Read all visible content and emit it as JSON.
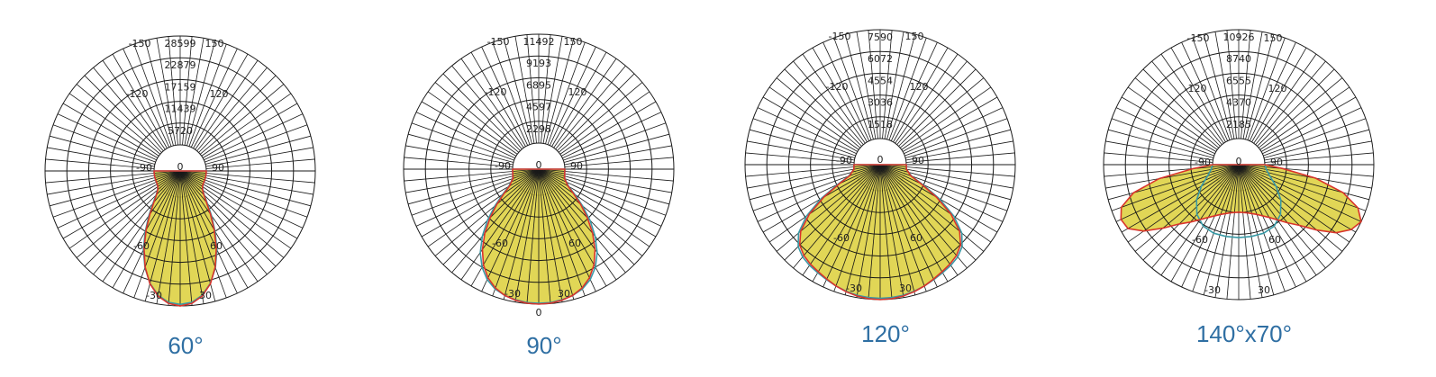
{
  "chart_data": [
    {
      "type": "polar",
      "title": "60°",
      "ring_labels": [
        "5720",
        "11439",
        "17159",
        "22879",
        "28599"
      ],
      "r_max": 28599,
      "angle_tick_labels": [
        "-150",
        "150",
        "-120",
        "120",
        "-90",
        "0",
        "90",
        "-60",
        "60",
        "-30",
        "30"
      ],
      "series": [
        {
          "angles": [
            0,
            5,
            10,
            15,
            20,
            25,
            30,
            35,
            40,
            45,
            50,
            55,
            60,
            70,
            80,
            90
          ],
          "values": [
            28599,
            28100,
            26500,
            23800,
            20000,
            15600,
            11000,
            7000,
            3900,
            1900,
            800,
            300,
            100,
            20,
            5,
            0
          ]
        },
        {
          "angles": [
            0,
            5,
            10,
            15,
            20,
            25,
            30,
            35,
            40,
            45,
            50,
            55,
            60,
            70,
            80,
            90
          ],
          "values": [
            28200,
            27800,
            26300,
            23700,
            20200,
            16000,
            11500,
            7500,
            4300,
            2100,
            900,
            350,
            120,
            25,
            5,
            0
          ]
        }
      ],
      "colors": {
        "fill": "#ded144",
        "series_1": "#d9342b",
        "series_2": "#3a9aa6",
        "grid": "#1a1a1a",
        "caption": "#2f6fa3"
      }
    },
    {
      "type": "polar",
      "title": "90°",
      "ring_labels": [
        "2298",
        "4597",
        "6895",
        "9193",
        "11492"
      ],
      "r_max": 11492,
      "angle_tick_labels": [
        "-150",
        "150",
        "-120",
        "120",
        "-90",
        "0",
        "90",
        "-60",
        "60",
        "-30",
        "30",
        "0"
      ],
      "series": [
        {
          "angles": [
            0,
            5,
            10,
            15,
            20,
            25,
            30,
            35,
            40,
            45,
            50,
            55,
            60,
            70,
            80,
            90
          ],
          "values": [
            11492,
            11450,
            11300,
            11050,
            10600,
            9900,
            8900,
            7600,
            6100,
            4500,
            3000,
            1700,
            800,
            150,
            20,
            0
          ]
        },
        {
          "angles": [
            0,
            5,
            10,
            15,
            20,
            25,
            30,
            35,
            40,
            45,
            50,
            55,
            60,
            70,
            80,
            90
          ],
          "values": [
            11400,
            11380,
            11250,
            11050,
            10700,
            10100,
            9200,
            8000,
            6500,
            4900,
            3300,
            1900,
            900,
            170,
            20,
            0
          ]
        }
      ],
      "colors": {
        "fill": "#ded144",
        "series_1": "#d9342b",
        "series_2": "#3a9aa6",
        "grid": "#1a1a1a",
        "caption": "#2f6fa3"
      }
    },
    {
      "type": "polar",
      "title": "120°",
      "ring_labels": [
        "1518",
        "3036",
        "4554",
        "6072",
        "7590"
      ],
      "r_max": 7590,
      "angle_tick_labels": [
        "-150",
        "150",
        "-120",
        "120",
        "-90",
        "0",
        "90",
        "-60",
        "60",
        "-30",
        "30"
      ],
      "series": [
        {
          "angles": [
            0,
            5,
            10,
            15,
            20,
            25,
            30,
            35,
            40,
            45,
            50,
            55,
            60,
            65,
            70,
            80,
            90
          ],
          "values": [
            7590,
            7560,
            7480,
            7350,
            7180,
            6980,
            6800,
            6650,
            6450,
            6100,
            5400,
            4200,
            2700,
            1300,
            450,
            40,
            0
          ]
        },
        {
          "angles": [
            0,
            5,
            10,
            15,
            20,
            25,
            30,
            35,
            40,
            45,
            50,
            55,
            60,
            65,
            70,
            80,
            90
          ],
          "values": [
            7500,
            7480,
            7420,
            7320,
            7180,
            7020,
            6880,
            6760,
            6580,
            6250,
            5600,
            4450,
            2950,
            1450,
            520,
            50,
            0
          ]
        }
      ],
      "colors": {
        "fill": "#ded144",
        "series_1": "#d9342b",
        "series_2": "#3a9aa6",
        "grid": "#1a1a1a",
        "caption": "#2f6fa3"
      }
    },
    {
      "type": "polar",
      "title": "140°x70°",
      "ring_labels": [
        "2185",
        "4370",
        "6555",
        "8740",
        "10926"
      ],
      "r_max": 10926,
      "angle_tick_labels": [
        "-150",
        "150",
        "-120",
        "120",
        "-90",
        "0",
        "90",
        "-60",
        "60",
        "-30",
        "30"
      ],
      "series": [
        {
          "angles": [
            -90,
            -85,
            -80,
            -75,
            -70,
            -65,
            -60,
            -55,
            -50,
            -45,
            -40,
            -30,
            -20,
            -10,
            0,
            10,
            20,
            30,
            40,
            45,
            50,
            55,
            60,
            65,
            70,
            75,
            80,
            85,
            90
          ],
          "values": [
            0,
            2000,
            5500,
            8300,
            9900,
            10400,
            10200,
            9000,
            7300,
            5800,
            4900,
            3500,
            2700,
            2300,
            2150,
            2300,
            2700,
            3500,
            5000,
            6000,
            7600,
            9300,
            10400,
            10926,
            10100,
            8200,
            5200,
            1800,
            0
          ]
        },
        {
          "angles": [
            -90,
            -80,
            -70,
            -60,
            -50,
            -40,
            -30,
            -20,
            -10,
            0,
            10,
            20,
            30,
            40,
            50,
            60,
            70,
            80,
            90
          ],
          "values": [
            0,
            200,
            700,
            1700,
            2900,
            3900,
            4500,
            4700,
            4700,
            4700,
            4700,
            4700,
            4500,
            3900,
            2900,
            1700,
            700,
            200,
            0
          ]
        }
      ],
      "colors": {
        "fill": "#ded144",
        "series_1": "#d9342b",
        "series_2": "#3a9aa6",
        "grid": "#1a1a1a",
        "caption": "#2f6fa3"
      }
    }
  ]
}
